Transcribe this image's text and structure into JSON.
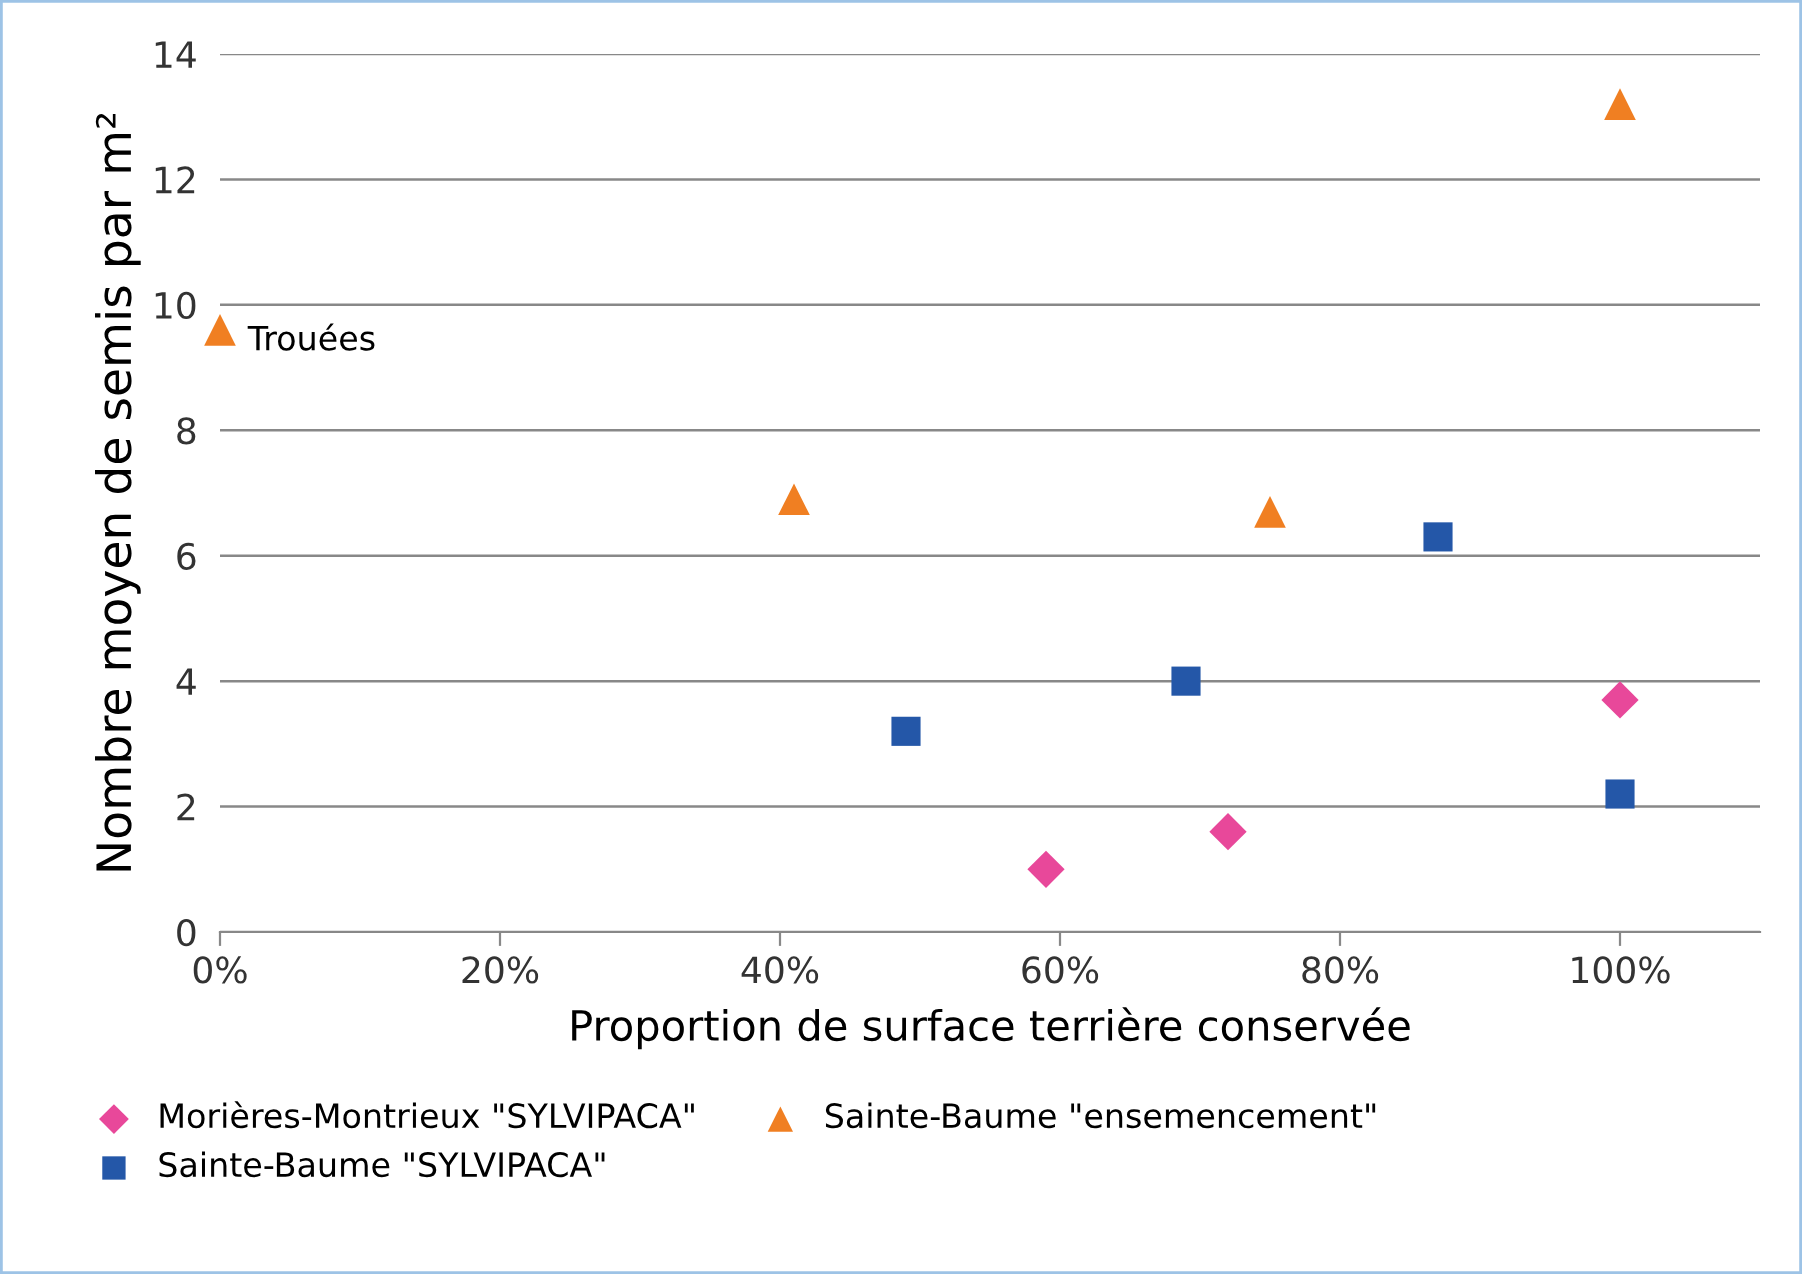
{
  "chart_data": {
    "type": "scatter",
    "xlabel": "Proportion de surface terrière conservée",
    "ylabel": "Nombre moyen de semis par m²",
    "xlim": [
      0,
      110
    ],
    "ylim": [
      0,
      14
    ],
    "xticks": [
      {
        "value": 0,
        "label": "0%"
      },
      {
        "value": 20,
        "label": "20%"
      },
      {
        "value": 40,
        "label": "40%"
      },
      {
        "value": 60,
        "label": "60%"
      },
      {
        "value": 80,
        "label": "80%"
      },
      {
        "value": 100,
        "label": "100%"
      }
    ],
    "yticks": [
      0,
      2,
      4,
      6,
      8,
      10,
      12,
      14
    ],
    "grid": "y",
    "legend": "bottom",
    "series": [
      {
        "name": "Morières-Montrieux \"SYLVIPACA\"",
        "color": "#e8489a",
        "marker": "diamond",
        "x": [
          59,
          72,
          100
        ],
        "values": [
          1.0,
          1.6,
          3.7
        ]
      },
      {
        "name": "Sainte-Baume \"SYLVIPACA\"",
        "color": "#2457a8",
        "marker": "square",
        "x": [
          49,
          69,
          87,
          100
        ],
        "values": [
          3.2,
          4.0,
          6.3,
          2.2
        ]
      },
      {
        "name": "Sainte-Baume \"ensemencement\"",
        "color": "#f07f22",
        "marker": "triangle",
        "x": [
          0,
          41,
          75,
          100
        ],
        "values": [
          9.6,
          6.9,
          6.7,
          13.2
        ]
      }
    ],
    "annotations": [
      {
        "text": "Trouées",
        "x": 0,
        "y": 9.6
      }
    ]
  }
}
